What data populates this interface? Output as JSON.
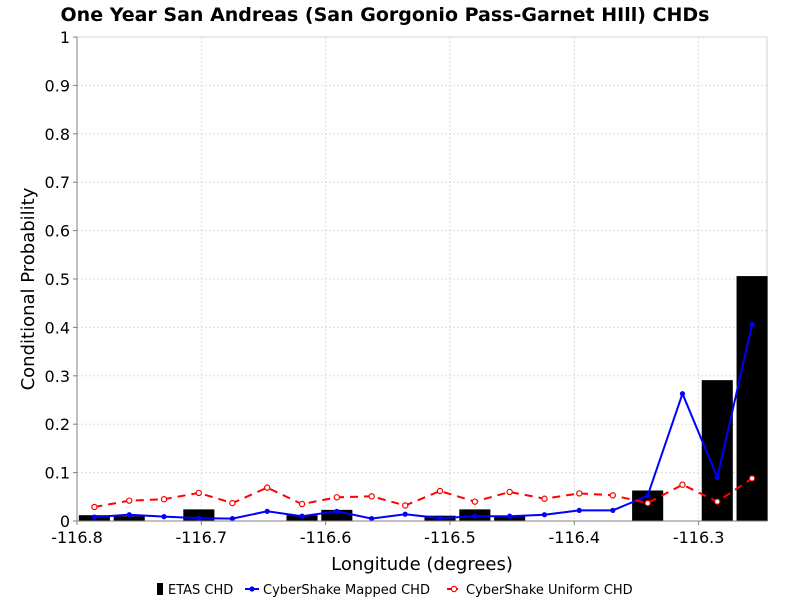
{
  "chart_data": {
    "type": "bar",
    "title": "One Year San Andreas (San Gorgonio Pass-Garnet HIll) CHDs",
    "xlabel": "Longitude (degrees)",
    "ylabel": "Conditional Probability",
    "xlim": [
      -116.8,
      -116.245
    ],
    "ylim": [
      0,
      1
    ],
    "grid": true,
    "legend_position": "bottom-center",
    "x_ticks": [
      -116.8,
      -116.7,
      -116.6,
      -116.5,
      -116.4,
      -116.3
    ],
    "x_tick_labels": [
      "-116.8",
      "-116.7",
      "-116.6",
      "-116.5",
      "-116.4",
      "-116.3"
    ],
    "y_ticks": [
      0,
      0.1,
      0.2,
      0.3,
      0.4,
      0.5,
      0.6,
      0.7,
      0.8,
      0.9,
      1
    ],
    "y_tick_labels": [
      "0",
      "0.1",
      "0.2",
      "0.3",
      "0.4",
      "0.5",
      "0.6",
      "0.7",
      "0.8",
      "0.9",
      "1"
    ],
    "bar_width": 0.025,
    "series": [
      {
        "name": "ETAS CHD",
        "type": "bar",
        "color": "#000000",
        "x": [
          -116.786,
          -116.758,
          -116.702,
          -116.619,
          -116.591,
          -116.508,
          -116.48,
          -116.452,
          -116.341,
          -116.285,
          -116.257
        ],
        "values": [
          0.012,
          0.01,
          0.024,
          0.012,
          0.023,
          0.011,
          0.024,
          0.01,
          0.063,
          0.291,
          0.506
        ]
      },
      {
        "name": "CyberShake Mapped CHD",
        "type": "line",
        "color": "#0000ff",
        "dashed": false,
        "marker": "filled-circle",
        "x": [
          -116.786,
          -116.758,
          -116.73,
          -116.702,
          -116.675,
          -116.647,
          -116.619,
          -116.591,
          -116.563,
          -116.536,
          -116.508,
          -116.48,
          -116.452,
          -116.424,
          -116.396,
          -116.369,
          -116.341,
          -116.313,
          -116.285,
          -116.257
        ],
        "values": [
          0.008,
          0.013,
          0.009,
          0.006,
          0.005,
          0.02,
          0.01,
          0.02,
          0.005,
          0.014,
          0.006,
          0.01,
          0.01,
          0.013,
          0.022,
          0.022,
          0.052,
          0.263,
          0.09,
          0.406
        ]
      },
      {
        "name": "CyberShake Uniform CHD",
        "type": "line",
        "color": "#ff0000",
        "dashed": true,
        "marker": "open-circle",
        "x": [
          -116.786,
          -116.758,
          -116.73,
          -116.702,
          -116.675,
          -116.647,
          -116.619,
          -116.591,
          -116.563,
          -116.536,
          -116.508,
          -116.48,
          -116.452,
          -116.424,
          -116.396,
          -116.369,
          -116.341,
          -116.313,
          -116.285,
          -116.257
        ],
        "values": [
          0.029,
          0.042,
          0.045,
          0.058,
          0.037,
          0.069,
          0.035,
          0.049,
          0.051,
          0.032,
          0.062,
          0.04,
          0.06,
          0.046,
          0.057,
          0.053,
          0.037,
          0.075,
          0.04,
          0.088
        ]
      }
    ]
  }
}
